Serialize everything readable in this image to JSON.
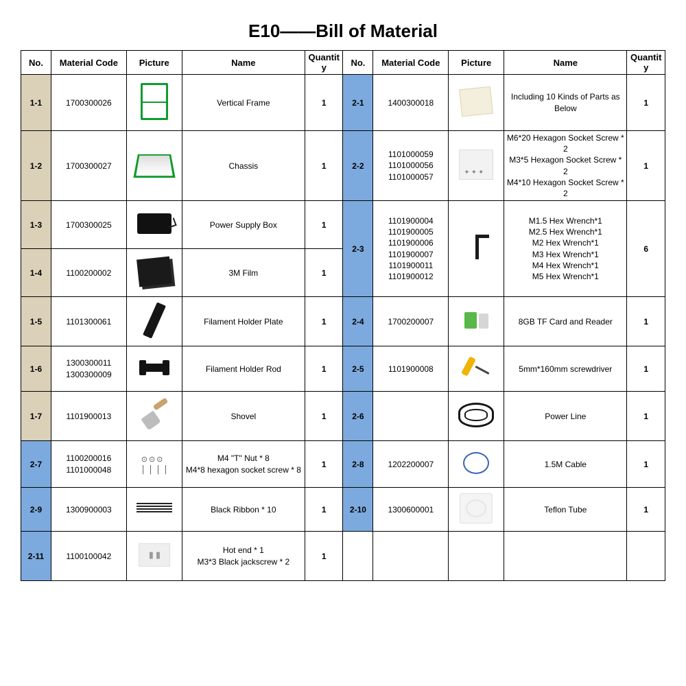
{
  "title": "E10——Bill of Material",
  "headers": {
    "no": "No.",
    "code": "Material Code",
    "picture": "Picture",
    "name": "Name",
    "qty": "Quantity"
  },
  "colors": {
    "tan": "#dad1b8",
    "blue": "#7daade",
    "border": "#000000",
    "text": "#000000",
    "background": "#ffffff"
  },
  "left": {
    "r1": {
      "no": "1-1",
      "code": "1700300026",
      "name": "Vertical Frame",
      "qty": "1"
    },
    "r2": {
      "no": "1-2",
      "code": "1700300027",
      "name": "Chassis",
      "qty": "1"
    },
    "r3": {
      "no": "1-3",
      "code": "1700300025",
      "name": "Power Supply Box",
      "qty": "1"
    },
    "r4": {
      "no": "1-4",
      "code": "1100200002",
      "name": "3M Film",
      "qty": "1"
    },
    "r5": {
      "no": "1-5",
      "code": "1101300061",
      "name": "Filament Holder Plate",
      "qty": "1"
    },
    "r6": {
      "no": "1-6",
      "code": "1300300011\n1300300009",
      "name": "Filament Holder Rod",
      "qty": "1"
    },
    "r7": {
      "no": "1-7",
      "code": "1101900013",
      "name": "Shovel",
      "qty": "1"
    },
    "r8": {
      "no": "2-7",
      "code": "1100200016\n1101000048",
      "name": "M4    \"T\" Nut * 8\nM4*8  hexagon socket screw  * 8",
      "qty": "1"
    },
    "r9": {
      "no": "2-9",
      "code": "1300900003",
      "name": "Black Ribbon  * 10",
      "qty": "1"
    },
    "r10": {
      "no": "2-11",
      "code": "1100100042",
      "name": "Hot end * 1\nM3*3 Black jackscrew * 2",
      "qty": "1"
    }
  },
  "right": {
    "r1": {
      "no": "2-1",
      "code": "1400300018",
      "name": "Including 10 Kinds of Parts as Below",
      "qty": "1"
    },
    "r2": {
      "no": "2-2",
      "code": "1101000059\n1101000056\n1101000057",
      "name": "M6*20 Hexagon Socket Screw * 2\nM3*5   Hexagon Socket Screw * 2\nM4*10 Hexagon Socket Screw * 2",
      "qty": "1"
    },
    "r3": {
      "no": "2-3",
      "code": "1101900004\n1101900005\n1101900006\n1101900007\n1101900011\n1101900012",
      "name": "M1.5 Hex Wrench*1\nM2.5 Hex Wrench*1\nM2   Hex Wrench*1\nM3   Hex Wrench*1\nM4   Hex Wrench*1\nM5   Hex Wrench*1",
      "qty": "6"
    },
    "r4": {
      "no": "2-4",
      "code": "1700200007",
      "name": "8GB TF Card and Reader",
      "qty": "1"
    },
    "r5": {
      "no": "2-5",
      "code": "1101900008",
      "name": "5mm*160mm screwdriver",
      "qty": "1"
    },
    "r6": {
      "no": "2-6",
      "code": "",
      "name": "Power Line",
      "qty": "1"
    },
    "r7": {
      "no": "2-8",
      "code": "1202200007",
      "name": "1.5M Cable",
      "qty": "1"
    },
    "r8": {
      "no": "2-10",
      "code": "1300600001",
      "name": "Teflon Tube",
      "qty": "1"
    }
  }
}
